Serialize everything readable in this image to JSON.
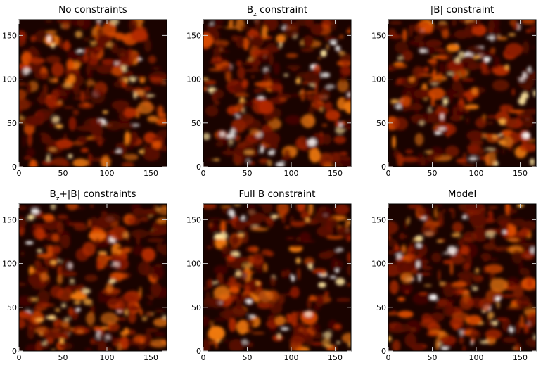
{
  "chart_data": [
    {
      "type": "image",
      "title": [
        {
          "text": "No constraints"
        }
      ],
      "xlim": [
        0,
        168
      ],
      "ylim": [
        0,
        168
      ],
      "xticks": [
        0,
        50,
        100,
        150
      ],
      "yticks": [
        0,
        50,
        100,
        150
      ]
    },
    {
      "type": "image",
      "title": [
        {
          "text": "B"
        },
        {
          "text": "z",
          "style": "sub"
        },
        {
          "text": " constraint"
        }
      ],
      "xlim": [
        0,
        168
      ],
      "ylim": [
        0,
        168
      ],
      "xticks": [
        0,
        50,
        100,
        150
      ],
      "yticks": [
        0,
        50,
        100,
        150
      ]
    },
    {
      "type": "image",
      "title": [
        {
          "text": "|B| constraint"
        }
      ],
      "xlim": [
        0,
        168
      ],
      "ylim": [
        0,
        168
      ],
      "xticks": [
        0,
        50,
        100,
        150
      ],
      "yticks": [
        0,
        50,
        100,
        150
      ]
    },
    {
      "type": "image",
      "title": [
        {
          "text": "B"
        },
        {
          "text": "z",
          "style": "sub"
        },
        {
          "text": "+|B| constraints"
        }
      ],
      "xlim": [
        0,
        168
      ],
      "ylim": [
        0,
        168
      ],
      "xticks": [
        0,
        50,
        100,
        150
      ],
      "yticks": [
        0,
        50,
        100,
        150
      ]
    },
    {
      "type": "image",
      "title": [
        {
          "text": "Full B constraint"
        }
      ],
      "xlim": [
        0,
        168
      ],
      "ylim": [
        0,
        168
      ],
      "xticks": [
        0,
        50,
        100,
        150
      ],
      "yticks": [
        0,
        50,
        100,
        150
      ]
    },
    {
      "type": "image",
      "title": [
        {
          "text": "Model"
        }
      ],
      "xlim": [
        0,
        168
      ],
      "ylim": [
        0,
        168
      ],
      "xticks": [
        0,
        50,
        100,
        150
      ],
      "yticks": [
        0,
        50,
        100,
        150
      ]
    }
  ]
}
